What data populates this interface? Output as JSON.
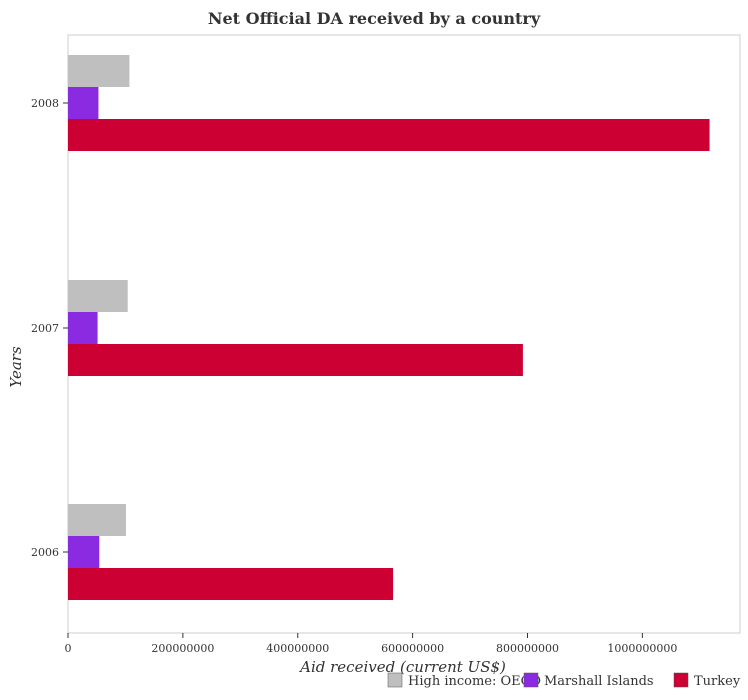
{
  "chart_data": {
    "type": "bar",
    "orientation": "horizontal",
    "title": "Net Official DA received by a country",
    "xlabel": "Aid received (current US$)",
    "ylabel": "Years",
    "categories": [
      "2006",
      "2007",
      "2008"
    ],
    "xlim": [
      0,
      1170000000
    ],
    "xticks": [
      0,
      200000000,
      400000000,
      600000000,
      800000000,
      1000000000
    ],
    "xtick_labels": [
      "0",
      "200000000",
      "400000000",
      "600000000",
      "800000000",
      "1000000000"
    ],
    "grid": false,
    "legend_position": "bottom-right",
    "series": [
      {
        "name": "High income: OECD",
        "color": "#bfbfbf",
        "values": [
          101000000,
          104000000,
          107000000
        ]
      },
      {
        "name": "Marshall Islands",
        "color": "#8a2be2",
        "values": [
          54500000,
          51500000,
          53000000
        ]
      },
      {
        "name": "Turkey",
        "color": "#cc0033",
        "values": [
          566000000,
          792000000,
          1117000000
        ]
      }
    ]
  }
}
